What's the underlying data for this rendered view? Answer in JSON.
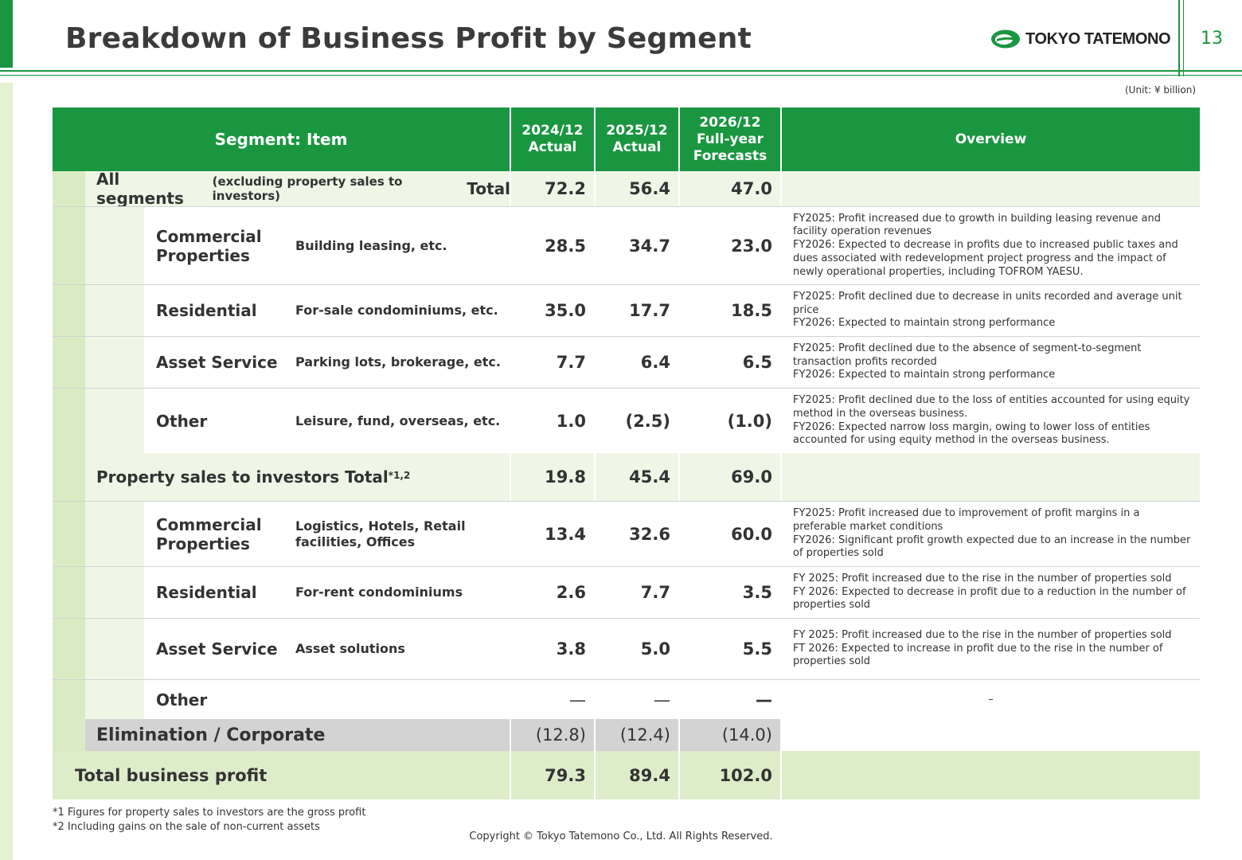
{
  "page": {
    "title": "Breakdown of Business Profit by Segment",
    "page_number": "13",
    "brand": "TOKYO TATEMONO",
    "unit": "(Unit: ¥ billion)"
  },
  "header": {
    "segment": "Segment: Item",
    "col1": [
      "2024/12",
      "Actual"
    ],
    "col2": [
      "2025/12",
      "Actual"
    ],
    "col3": [
      "2026/12",
      "Full-year",
      "Forecasts"
    ],
    "overview": "Overview"
  },
  "all_segments": {
    "label_main": "All segments",
    "label_note": "(excluding property sales to investors)",
    "label_total": "Total",
    "v2024": "72.2",
    "v2025": "56.4",
    "v2026": "47.0"
  },
  "segments": [
    {
      "segment": "Commercial Properties",
      "item": "Building leasing, etc.",
      "v2024": "28.5",
      "v2025": "34.7",
      "v2026": "23.0",
      "overview": "FY2025: Profit increased due to growth in building leasing revenue and facility operation revenues\nFY2026: Expected to decrease in profits due to increased public taxes and dues associated with redevelopment project progress and the impact of newly operational properties, including TOFROM YAESU."
    },
    {
      "segment": "Residential",
      "item": "For-sale condominiums, etc.",
      "v2024": "35.0",
      "v2025": "17.7",
      "v2026": "18.5",
      "overview": "FY2025: Profit declined due to decrease in units recorded and average unit price\nFY2026: Expected to maintain strong performance"
    },
    {
      "segment": "Asset Service",
      "item": "Parking lots, brokerage, etc.",
      "v2024": "7.7",
      "v2025": "6.4",
      "v2026": "6.5",
      "overview": "FY2025: Profit declined due to the absence of segment-to-segment transaction profits recorded\nFY2026: Expected to maintain strong performance"
    },
    {
      "segment": "Other",
      "item": "Leisure, fund, overseas, etc.",
      "v2024": "1.0",
      "v2025": "(2.5)",
      "v2026": "(1.0)",
      "overview": "FY2025: Profit declined due to the loss of entities accounted for using equity method in the overseas business.\nFY2026: Expected narrow loss margin, owing to lower loss of entities accounted for using equity method in the overseas business."
    }
  ],
  "property_sales": {
    "label": "Property sales to investors Total",
    "sup": "*1,2",
    "v2024": "19.8",
    "v2025": "45.4",
    "v2026": "69.0"
  },
  "property_segments": [
    {
      "segment": "Commercial Properties",
      "item": "Logistics, Hotels, Retail facilities, Offices",
      "v2024": "13.4",
      "v2025": "32.6",
      "v2026": "60.0",
      "overview": "FY2025: Profit increased due to improvement of profit margins in a preferable market conditions\nFY2026: Significant profit growth expected due to an increase in the number of properties sold"
    },
    {
      "segment": "Residential",
      "item": "For-rent condominiums",
      "v2024": "2.6",
      "v2025": "7.7",
      "v2026": "3.5",
      "overview": "FY 2025: Profit increased due to the rise in the number of properties sold\nFY 2026: Expected to decrease in profit due to a reduction in the number of properties sold"
    },
    {
      "segment": "Asset Service",
      "item": "Asset solutions",
      "v2024": "3.8",
      "v2025": "5.0",
      "v2026": "5.5",
      "overview": "FY 2025: Profit increased due to the rise in the number of properties sold\nFT 2026: Expected to increase in profit due to the rise in the number of properties sold"
    },
    {
      "segment": "Other",
      "item": "",
      "v2024": "—",
      "v2025": "—",
      "v2026": "—",
      "overview": "–"
    }
  ],
  "elimination": {
    "label": "Elimination / Corporate",
    "v2024": "(12.8)",
    "v2025": "(12.4)",
    "v2026": "(14.0)"
  },
  "grand_total": {
    "label": "Total business profit",
    "v2024": "79.3",
    "v2025": "89.4",
    "v2026": "102.0"
  },
  "footnotes": {
    "note1": "*1 Figures for property sales to investors are the gross profit",
    "note2": "*2 Including gains on the sale of non-current assets",
    "copyright": "Copyright © Tokyo Tatemono Co., Ltd. All Rights Reserved."
  }
}
